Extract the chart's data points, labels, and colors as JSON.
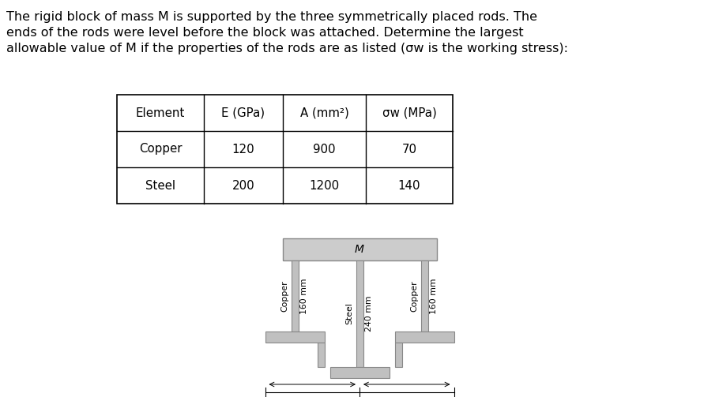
{
  "title_lines": [
    "The rigid block of mass M is supported by the three symmetrically placed rods. The",
    "ends of the rods were level before the block was attached. Determine the largest",
    "allowable value of M if the properties of the rods are as listed (σw is the working stress):"
  ],
  "title_fontsize": 11.5,
  "table_headers": [
    "Element",
    "E (GPa)",
    "A (mm²)",
    "σw (MPa)"
  ],
  "table_rows": [
    [
      "Copper",
      "120",
      "900",
      "70"
    ],
    [
      "Steel",
      "200",
      "1200",
      "140"
    ]
  ],
  "bg_color": "#ffffff",
  "block_facecolor": "#cccccc",
  "block_edgecolor": "#888888",
  "rod_facecolor": "#c0c0c0",
  "rod_edgecolor": "#888888",
  "support_facecolor": "#c0c0c0",
  "support_edgecolor": "#888888",
  "label_fontsize": 7.8,
  "dim_fontsize": 8.0
}
